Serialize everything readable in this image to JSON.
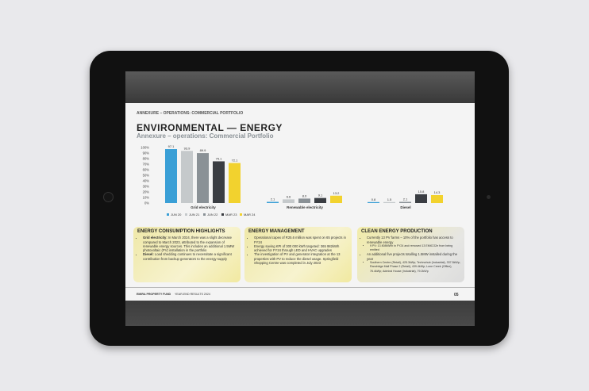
{
  "slide": {
    "kicker": "ANNEXURE – OPERATIONS: COMMERCIAL PORTFOLIO",
    "title": "ENVIRONMENTAL — ENERGY",
    "subtitle": "Annexure – operations: Commercial Portfolio",
    "footer_left": "EMIRA PROPERTY FUND",
    "footer_mid": "YEAR-END RESULTS 2024",
    "page": "05"
  },
  "chart_data": {
    "type": "bar",
    "categories": [
      "Grid electricity",
      "Renewable electricity",
      "Diesel"
    ],
    "ylim": [
      0,
      100
    ],
    "yticks": [
      "0%",
      "10%",
      "20%",
      "30%",
      "40%",
      "50%",
      "60%",
      "70%",
      "80%",
      "90%",
      "100%"
    ],
    "legend_position": "bottom",
    "series": [
      {
        "name": "JUN 20",
        "color": "#3a9fd6",
        "values": [
          97.1,
          2.1,
          0.8
        ]
      },
      {
        "name": "JUN 21",
        "color": "#c5c9cb",
        "values": [
          93.9,
          6.6,
          1.5
        ]
      },
      {
        "name": "JUN 22",
        "color": "#8a9196",
        "values": [
          89.9,
          8.0,
          2.1
        ]
      },
      {
        "name": "MAR 23",
        "color": "#3a3d42",
        "values": [
          75.1,
          9.1,
          15.8
        ]
      },
      {
        "name": "MAR 24",
        "color": "#f2d22e",
        "values": [
          72.1,
          13.2,
          14.3
        ]
      }
    ]
  },
  "boxes": [
    {
      "title": "ENERGY CONSUMPTION HIGHLIGHTS",
      "items": [
        {
          "b": "Grid electricity:",
          "t": " In March 2024, there was a slight decrease compared to March 2023, attributed to the expansion of renewable energy sources. This includes an additional 1.5MW photovoltaic (PV) installation in the portfolio"
        },
        {
          "b": "Diesel:",
          "t": " Load shedding continues to necessitate a significant contribution from backup generators to the energy supply"
        }
      ]
    },
    {
      "title": "ENERGY MANAGEMENT",
      "items": [
        {
          "b": "",
          "t": "Operational capex of R25.6 million was spent on 65 projects in FY24"
        },
        {
          "b": "",
          "t": "Energy saving KPI of 300 000 kWh targeted: 365 982kWh achieved for FY24 through LED and HVAC upgrades"
        },
        {
          "b": "",
          "t": "The investigation of PV and generator integration at the 13 properties with PV to reduce the diesel usage. Springfield Shopping Centre was completed in July 2023"
        }
      ]
    },
    {
      "title": "CLEAN ENERGY PRODUCTION",
      "items": [
        {
          "b": "",
          "t": "Currently 13 PV farms – 10% of the portfolio has access to renewable energy"
        },
        {
          "b": "",
          "t": "9 PV: 13 808MWh in FY24 and removed 13 EMtCO2e from being emitted",
          "sub": true
        },
        {
          "b": "",
          "t": "An additional five projects totalling 1.5MW installed during the year"
        },
        {
          "b": "",
          "t": "Southern Centre (Retail), 425.3kWp; Technohub (Industrial), 337.5kWp; Randridge Mall Phase 2 (Retail), 439.4kWp; Lone Creek (Office), 76.4kWp; Admiral House (Industrial), 79.2kWp",
          "sub": true
        }
      ]
    }
  ]
}
